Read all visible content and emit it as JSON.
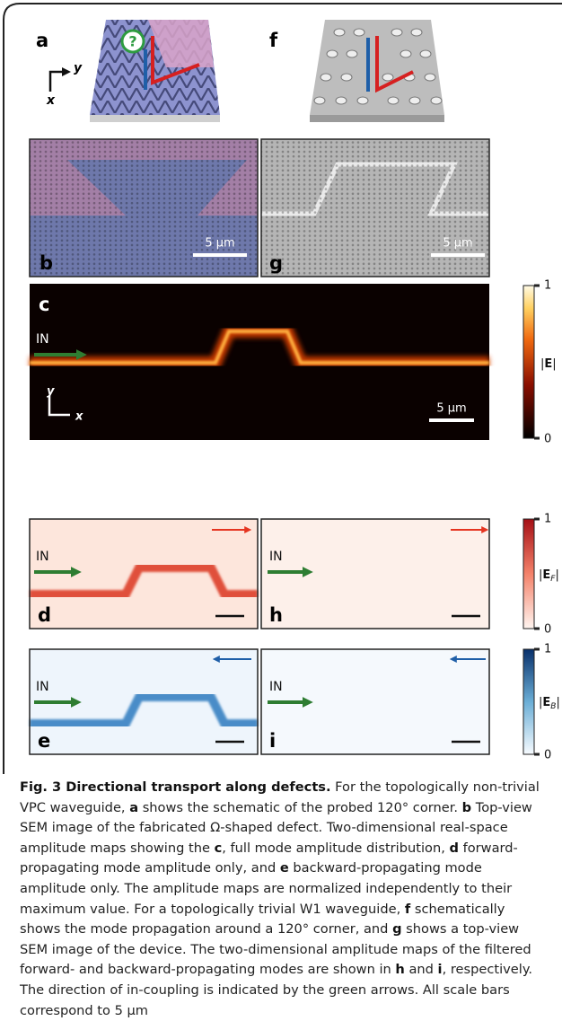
{
  "panel_labels": [
    "a",
    "f",
    "b",
    "g",
    "c",
    "d",
    "h",
    "e",
    "i"
  ],
  "schematic_a": {
    "question": "?"
  },
  "axes_a": {
    "x": "x",
    "y": "y"
  },
  "axes_c": {
    "x": "x",
    "y": "y"
  },
  "scale_bars": [
    "5 µm",
    "5 µm",
    "5 µm"
  ],
  "input_labels": [
    "IN",
    "IN",
    "IN",
    "IN",
    "IN"
  ],
  "colorbars": [
    {
      "prefix": "|",
      "symbol": "E",
      "subscript": null,
      "suffix": "|",
      "max": 1,
      "min": 0
    },
    {
      "prefix": "|",
      "symbol": "E",
      "subscript": "F",
      "suffix": "|",
      "max": 1,
      "min": 0
    },
    {
      "prefix": "|",
      "symbol": "E",
      "subscript": "B",
      "suffix": "|",
      "max": 1,
      "min": 0
    }
  ],
  "caption": [
    {
      "text": "Fig. 3 Directional transport along defects.",
      "bold": true
    },
    {
      "text": " For the topologically non-trivial VPC waveguide, ",
      "bold": false
    },
    {
      "text": "a",
      "bold": true
    },
    {
      "text": " shows the schematic of the probed 120° corner. ",
      "bold": false
    },
    {
      "text": "b",
      "bold": true
    },
    {
      "text": " Top-view SEM image of the fabricated Ω-shaped defect. Two-dimensional real-space amplitude maps showing the ",
      "bold": false
    },
    {
      "text": "c",
      "bold": true
    },
    {
      "text": ", full mode amplitude distribution, ",
      "bold": false
    },
    {
      "text": "d",
      "bold": true
    },
    {
      "text": " forward-propagating mode amplitude only, and ",
      "bold": false
    },
    {
      "text": "e",
      "bold": true
    },
    {
      "text": " backward-propagating mode amplitude only. The amplitude maps are normalized independently to their maximum value. For a topologically trivial W1 waveguide, ",
      "bold": false
    },
    {
      "text": "f",
      "bold": true
    },
    {
      "text": " schematically shows the mode propagation around a 120° corner, and ",
      "bold": false
    },
    {
      "text": "g",
      "bold": true
    },
    {
      "text": " shows a top-view SEM image of the device. The two-dimensional amplitude maps of the filtered forward- and backward-propagating modes are shown in ",
      "bold": false
    },
    {
      "text": "h",
      "bold": true
    },
    {
      "text": " and ",
      "bold": false
    },
    {
      "text": "i",
      "bold": true
    },
    {
      "text": ", respectively. The direction of in-coupling is indicated by the green arrows. All scale bars correspond to 5 µm",
      "bold": false
    }
  ]
}
